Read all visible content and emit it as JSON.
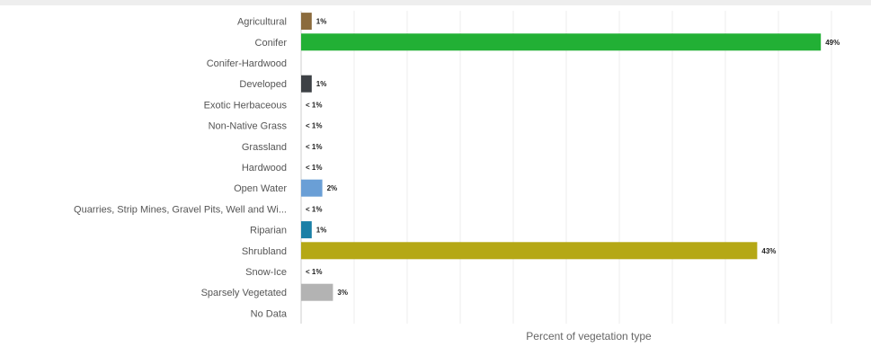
{
  "chart_data": {
    "type": "bar",
    "orientation": "horizontal",
    "title": "",
    "xlabel": "Percent of vegetation type",
    "ylabel": "",
    "xlim": [
      0,
      50
    ],
    "grid": true,
    "legend": "none",
    "categories": [
      "Agricultural",
      "Conifer",
      "Conifer-Hardwood",
      "Developed",
      "Exotic Herbaceous",
      "Non-Native Grass",
      "Grassland",
      "Hardwood",
      "Open Water",
      "Quarries, Strip Mines, Gravel Pits, Well and Wi...",
      "Riparian",
      "Shrubland",
      "Snow-Ice",
      "Sparsely Vegetated",
      "No Data"
    ],
    "values": [
      1,
      49,
      null,
      1,
      0.1,
      0.1,
      0.1,
      0.1,
      2,
      0.1,
      1,
      43,
      0.1,
      3,
      null
    ],
    "data_labels": [
      "1%",
      "49%",
      "",
      "1%",
      "< 1%",
      "< 1%",
      "< 1%",
      "< 1%",
      "2%",
      "< 1%",
      "1%",
      "43%",
      "< 1%",
      "3%",
      ""
    ],
    "colors": [
      "#8b6b3d",
      "#22b035",
      "#6e9a6a",
      "#3d4145",
      "#b0b0b0",
      "#b0b0b0",
      "#b0b0b0",
      "#b0b0b0",
      "#6a9fd6",
      "#b0b0b0",
      "#1a7fa6",
      "#b5a815",
      "#b0b0b0",
      "#b3b3b3",
      "#b0b0b0"
    ]
  }
}
